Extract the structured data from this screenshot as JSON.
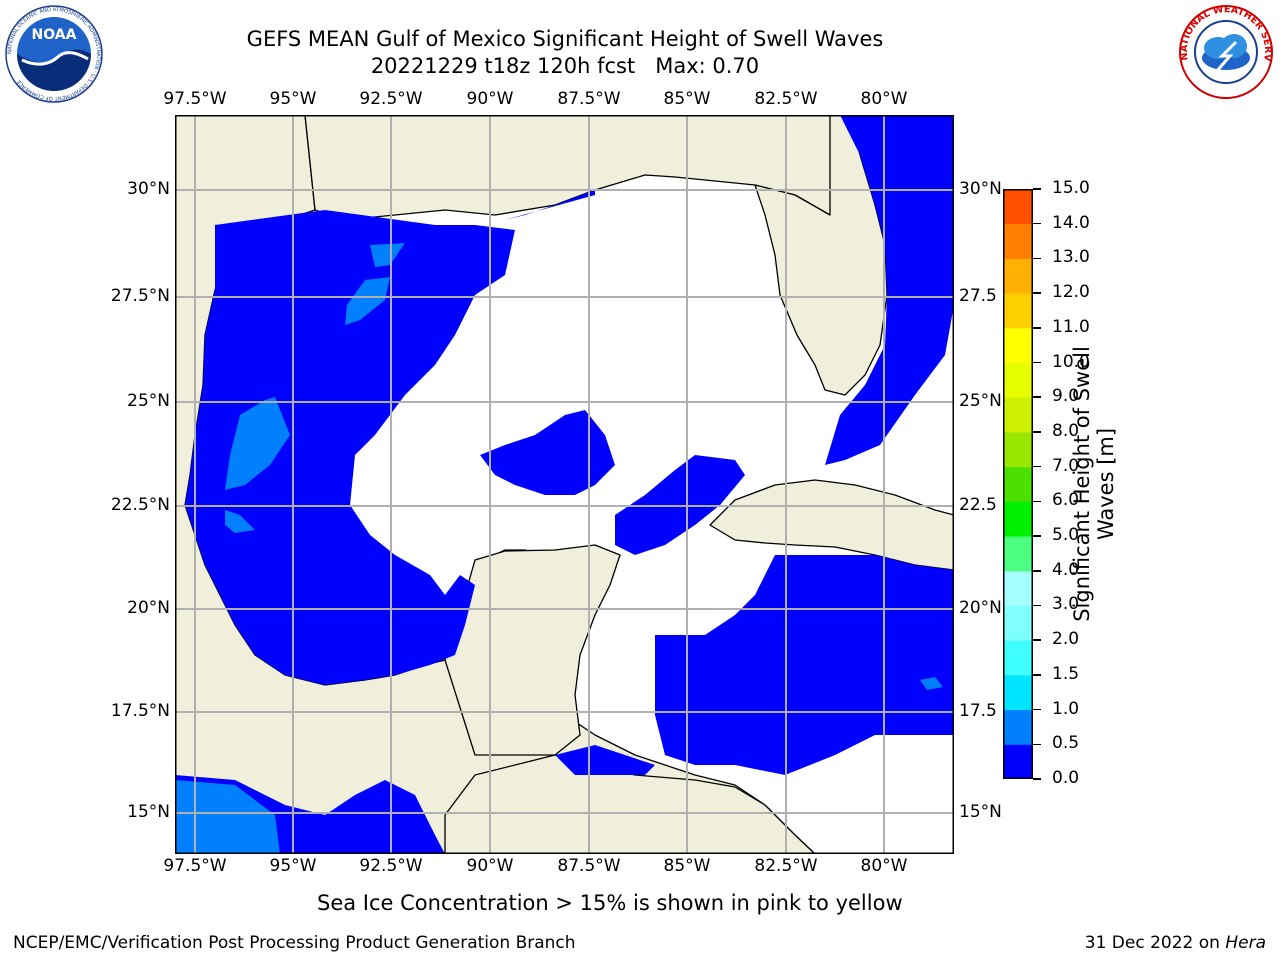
{
  "header": {
    "title_line1": "GEFS MEAN Gulf of Mexico Significant Height of Swell Waves",
    "title_line2": "20221229 t18z 120h fcst   Max: 0.70"
  },
  "logos": {
    "left": {
      "text": "NOAA",
      "ring_text": "NATIONAL OCEANIC AND ATMOSPHERIC ADMINISTRATION · U.S. DEPARTMENT OF COMMERCE"
    },
    "right": {
      "ring_text": "NATIONAL WEATHER SERVICE"
    }
  },
  "map": {
    "lon_labels": [
      "97.5°W",
      "95°W",
      "92.5°W",
      "90°W",
      "87.5°W",
      "85°W",
      "82.5°W",
      "80°W"
    ],
    "lat_labels_left": [
      "30°N",
      "27.5°N",
      "25°N",
      "22.5°N",
      "20°N",
      "17.5°N",
      "15°N"
    ],
    "lat_labels_right": [
      "30°N",
      "27.5",
      "25°N",
      "22.5",
      "20°N",
      "17.5",
      "15°N"
    ],
    "colors": {
      "land": "#efefdc",
      "ocean_low": "#0000ff",
      "ocean_mid": "#0080ff",
      "grid": "#b0b0b0",
      "no_data": "#ffffff"
    }
  },
  "colorbar": {
    "ticks": [
      "0.0",
      "0.5",
      "1.0",
      "1.5",
      "2.0",
      "3.0",
      "4.0",
      "5.0",
      "6.0",
      "7.0",
      "8.0",
      "9.0",
      "10.0",
      "11.0",
      "12.0",
      "13.0",
      "14.0",
      "15.0"
    ],
    "colors": [
      "#0000ff",
      "#0080ff",
      "#00e5ff",
      "#40ffff",
      "#80ffff",
      "#a6ffff",
      "#4dff80",
      "#00f000",
      "#4ce000",
      "#99e600",
      "#ccf000",
      "#e6ff00",
      "#ffff00",
      "#ffd000",
      "#ffb000",
      "#ff8000",
      "#ff5000",
      "#ff2000",
      "#ff0000"
    ],
    "label_line1": "Significant Height of Swell",
    "label_line2": "Waves [m]"
  },
  "caption": "Sea Ice Concentration > 15% is shown in pink to yellow",
  "footer": {
    "left": "NCEP/EMC/Verification Post Processing Product Generation Branch",
    "right_date": "31 Dec 2022 on ",
    "right_host": "Hera"
  }
}
